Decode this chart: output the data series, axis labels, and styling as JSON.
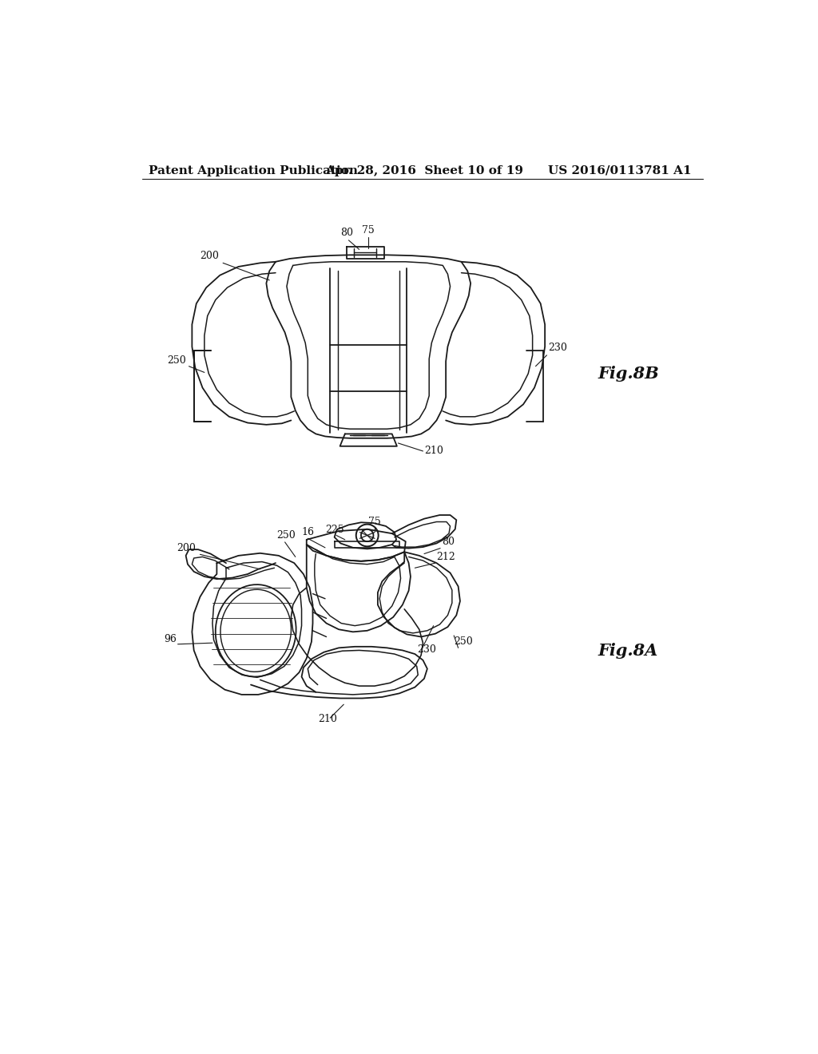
{
  "background_color": "#ffffff",
  "line_color": "#1a1a1a",
  "line_width": 1.3,
  "header_left": "Patent Application Publication",
  "header_center": "Apr. 28, 2016  Sheet 10 of 19",
  "header_right": "US 2016/0113781 A1",
  "header_fontsize": 11,
  "fig_label_8B": "Fig.8B",
  "fig_label_8A": "Fig.8A",
  "fig_label_fontsize": 15,
  "ref_fontsize": 9
}
